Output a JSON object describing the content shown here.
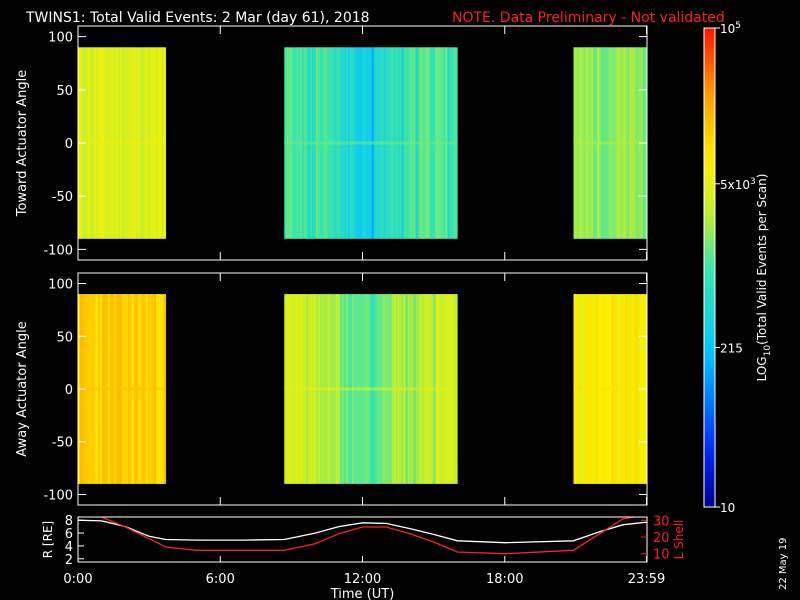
{
  "header": {
    "title": "TWINS1: Total Valid Events:  2 Mar (day  61), 2018",
    "note": "NOTE. Data Preliminary - Not validated",
    "note_color": "#ff2020"
  },
  "footer": {
    "stamp": "22 May 19"
  },
  "colors": {
    "r_line": "#ffffff",
    "l_line": "#ff2020",
    "frame": "#ffffff",
    "background": "#000000"
  },
  "chart_data": [
    {
      "type": "heatmap",
      "name": "toward",
      "ylabel": "Toward Actuator Angle",
      "ylim": [
        -110,
        110
      ],
      "yticks": [
        100,
        50,
        0,
        -50,
        -100
      ],
      "angle_range": [
        -90,
        90
      ],
      "x_unit": "hours UT",
      "xlim": [
        0,
        24
      ],
      "segments": [
        {
          "start": 0.0,
          "end": 3.7,
          "mean_log": 3.62
        },
        {
          "start": 8.7,
          "end": 16.0,
          "mean_log": 3.05
        },
        {
          "start": 20.9,
          "end": 24.0,
          "mean_log": 3.28
        }
      ]
    },
    {
      "type": "heatmap",
      "name": "away",
      "ylabel": "Away Actuator Angle",
      "ylim": [
        -110,
        110
      ],
      "yticks": [
        100,
        50,
        0,
        -50,
        -100
      ],
      "angle_range": [
        -90,
        90
      ],
      "x_unit": "hours UT",
      "xlim": [
        0,
        24
      ],
      "segments": [
        {
          "start": 0.0,
          "end": 3.7,
          "mean_log": 4.1
        },
        {
          "start": 8.7,
          "end": 16.0,
          "mean_log": 3.55
        },
        {
          "start": 20.9,
          "end": 24.0,
          "mean_log": 3.85
        }
      ]
    },
    {
      "type": "line",
      "name": "ephemeris",
      "xlabel": "Time (UT)",
      "xticks": [
        "0:00",
        "6:00",
        "12:00",
        "18:00",
        "23:59"
      ],
      "xtick_hours": [
        0,
        6,
        12,
        18,
        23.98
      ],
      "xlim": [
        0,
        24
      ],
      "left_axis": {
        "label": "R [RE]",
        "ylim": [
          1.5,
          8.5
        ],
        "yticks": [
          "8",
          "6",
          "4",
          "2"
        ],
        "ytick_values": [
          8,
          6,
          4,
          2
        ]
      },
      "right_axis": {
        "label": "L Shell",
        "ylim": [
          5,
          32
        ],
        "yticks": [
          "30",
          "20",
          "10"
        ],
        "ytick_values": [
          30,
          20,
          10
        ]
      },
      "series": [
        {
          "axis": "left",
          "x": [
            0,
            1,
            2,
            3,
            3.7,
            5,
            7,
            8.7,
            10,
            11,
            12,
            13,
            14,
            15,
            16,
            18,
            20.9,
            22,
            23,
            24
          ],
          "y": [
            8.0,
            7.9,
            7.0,
            5.5,
            5.0,
            4.9,
            4.9,
            5.0,
            6.0,
            7.0,
            7.6,
            7.5,
            6.7,
            5.8,
            4.8,
            4.5,
            4.8,
            6.2,
            7.3,
            7.7
          ]
        },
        {
          "axis": "right",
          "x": [
            1.0,
            2,
            3,
            3.7,
            5,
            7,
            8.7,
            10,
            11,
            12,
            13,
            14,
            15,
            16,
            18,
            20.9,
            22,
            23,
            24
          ],
          "y": [
            32,
            26,
            19,
            14,
            12,
            12,
            12,
            16,
            22,
            26,
            26,
            22,
            17,
            11,
            10,
            12,
            22,
            31,
            33
          ]
        }
      ]
    }
  ],
  "colorbar": {
    "label": "LOG10(Total Valid Events per Scan)",
    "range_log": [
      1,
      5
    ],
    "ticks": [
      {
        "value_log": 5.0,
        "base": "10",
        "exp": "5"
      },
      {
        "value_log": 3.699,
        "base": "5x10",
        "exp": "3"
      },
      {
        "value_log": 2.332,
        "base": "215",
        "exp": ""
      },
      {
        "value_log": 1.0,
        "base": "10",
        "exp": ""
      }
    ]
  }
}
